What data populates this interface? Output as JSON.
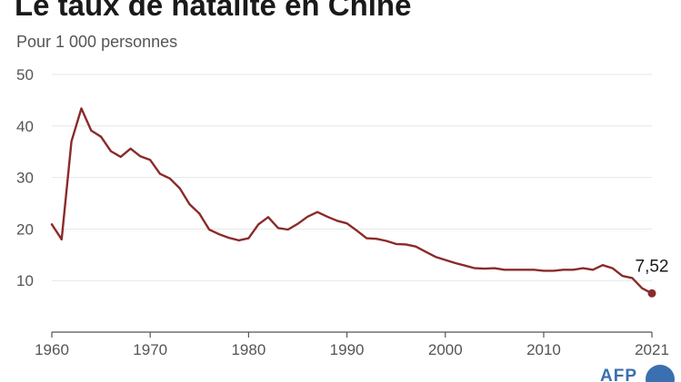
{
  "title": "Le taux de natalité en Chine",
  "subtitle": "Pour 1 000 personnes",
  "logo_text": "AFP",
  "colors": {
    "line": "#8b2a2a",
    "grid": "#e6e6e6",
    "axis": "#555555",
    "text": "#1a1a1a",
    "logo": "#3a6fb0"
  },
  "chart_data": {
    "type": "line",
    "title": "Le taux de natalité en Chine",
    "subtitle": "Pour 1 000 personnes",
    "xlabel": "",
    "ylabel": "",
    "xlim": [
      1960,
      2021
    ],
    "ylim": [
      0,
      50
    ],
    "x_ticks": [
      1960,
      1970,
      1980,
      1990,
      2000,
      2010,
      2021
    ],
    "y_ticks": [
      10,
      20,
      30,
      40,
      50
    ],
    "grid": "horizontal",
    "end_label": "7,52",
    "series": [
      {
        "x": [
          1960,
          1961,
          1962,
          1963,
          1964,
          1965,
          1966,
          1967,
          1968,
          1969,
          1970,
          1971,
          1972,
          1973,
          1974,
          1975,
          1976,
          1977,
          1978,
          1979,
          1980,
          1981,
          1982,
          1983,
          1984,
          1985,
          1986,
          1987,
          1988,
          1989,
          1990,
          1991,
          1992,
          1993,
          1994,
          1995,
          1996,
          1997,
          1998,
          1999,
          2000,
          2001,
          2002,
          2003,
          2004,
          2005,
          2006,
          2007,
          2008,
          2009,
          2010,
          2011,
          2012,
          2013,
          2014,
          2015,
          2016,
          2017,
          2018,
          2019,
          2020,
          2021
        ],
        "y": [
          20.9,
          18.0,
          37.0,
          43.4,
          39.1,
          37.9,
          35.1,
          34.0,
          35.6,
          34.1,
          33.4,
          30.7,
          29.8,
          27.9,
          24.8,
          23.0,
          19.9,
          19.0,
          18.3,
          17.8,
          18.2,
          20.9,
          22.3,
          20.2,
          19.9,
          21.0,
          22.4,
          23.3,
          22.4,
          21.6,
          21.1,
          19.7,
          18.2,
          18.1,
          17.7,
          17.1,
          17.0,
          16.6,
          15.6,
          14.6,
          14.0,
          13.4,
          12.9,
          12.4,
          12.3,
          12.4,
          12.1,
          12.1,
          12.1,
          12.1,
          11.9,
          11.9,
          12.1,
          12.1,
          12.4,
          12.1,
          13.0,
          12.4,
          10.9,
          10.5,
          8.5,
          7.52
        ]
      }
    ]
  }
}
